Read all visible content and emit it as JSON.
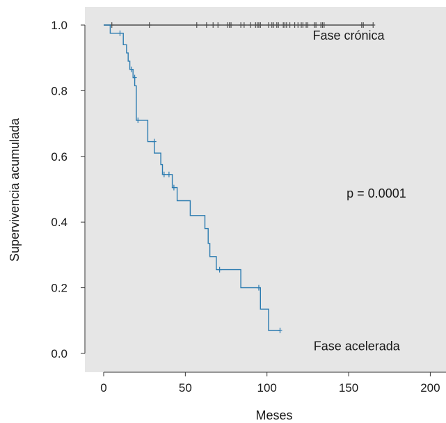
{
  "chart_data": {
    "type": "line",
    "xlabel": "Meses",
    "ylabel": "Supervivencia acumulada",
    "xlim": [
      -8,
      200
    ],
    "ylim": [
      -0.04,
      1.05
    ],
    "x_ticks": [
      0,
      50,
      100,
      150,
      200
    ],
    "x_tick_labels": [
      "0",
      "50",
      "100",
      "150",
      "200"
    ],
    "y_ticks": [
      0.0,
      0.2,
      0.4,
      0.6,
      0.8,
      1.0
    ],
    "y_tick_labels": [
      "0.0",
      "0.2",
      "0.4",
      "0.6",
      "0.8",
      "1.0"
    ],
    "grid": false,
    "background": "#e6e6e6",
    "series": [
      {
        "name": "Fase crónica",
        "color": "#4d4d4d",
        "steps": [
          [
            0,
            1.0
          ],
          [
            165,
            1.0
          ]
        ],
        "censored_x": [
          5,
          28,
          57,
          63,
          67,
          70,
          76,
          77,
          78,
          84,
          86,
          90,
          93,
          94,
          95,
          96,
          101,
          103,
          104,
          106,
          107,
          110,
          111,
          112,
          114,
          117,
          119,
          121,
          122,
          124,
          125,
          129,
          130,
          133,
          134,
          135,
          158,
          159,
          165
        ],
        "censored_y": 1.0
      },
      {
        "name": "Fase acelerada",
        "color": "#2b7bb0",
        "steps": [
          [
            0,
            1.0
          ],
          [
            4,
            1.0
          ],
          [
            4,
            0.975
          ],
          [
            12,
            0.975
          ],
          [
            12,
            0.94
          ],
          [
            14,
            0.94
          ],
          [
            14,
            0.915
          ],
          [
            15,
            0.915
          ],
          [
            15,
            0.89
          ],
          [
            16,
            0.89
          ],
          [
            16,
            0.865
          ],
          [
            18,
            0.865
          ],
          [
            18,
            0.84
          ],
          [
            19,
            0.84
          ],
          [
            19,
            0.815
          ],
          [
            20,
            0.815
          ],
          [
            20,
            0.71
          ],
          [
            27,
            0.71
          ],
          [
            27,
            0.645
          ],
          [
            31,
            0.645
          ],
          [
            31,
            0.61
          ],
          [
            35,
            0.61
          ],
          [
            35,
            0.575
          ],
          [
            36,
            0.575
          ],
          [
            36,
            0.545
          ],
          [
            42,
            0.545
          ],
          [
            42,
            0.505
          ],
          [
            45,
            0.505
          ],
          [
            45,
            0.465
          ],
          [
            53,
            0.465
          ],
          [
            53,
            0.42
          ],
          [
            62,
            0.42
          ],
          [
            62,
            0.38
          ],
          [
            64,
            0.38
          ],
          [
            64,
            0.335
          ],
          [
            65,
            0.335
          ],
          [
            65,
            0.295
          ],
          [
            69,
            0.295
          ],
          [
            69,
            0.255
          ],
          [
            84,
            0.255
          ],
          [
            84,
            0.2
          ],
          [
            96,
            0.2
          ],
          [
            96,
            0.135
          ],
          [
            101,
            0.135
          ],
          [
            101,
            0.07
          ],
          [
            108,
            0.07
          ]
        ],
        "censored": [
          [
            10,
            0.975
          ],
          [
            17,
            0.865
          ],
          [
            19,
            0.84
          ],
          [
            21,
            0.71
          ],
          [
            31,
            0.645
          ],
          [
            37,
            0.545
          ],
          [
            40,
            0.545
          ],
          [
            43,
            0.505
          ],
          [
            71,
            0.255
          ],
          [
            95,
            0.2
          ],
          [
            108,
            0.07
          ]
        ]
      }
    ],
    "annotations": [
      {
        "text": "Fase crónica",
        "x": 150,
        "y": 0.955
      },
      {
        "text": "p = 0.0001",
        "x": 167,
        "y": 0.475
      },
      {
        "text": "Fase acelerada",
        "x": 155,
        "y": 0.01
      }
    ]
  }
}
